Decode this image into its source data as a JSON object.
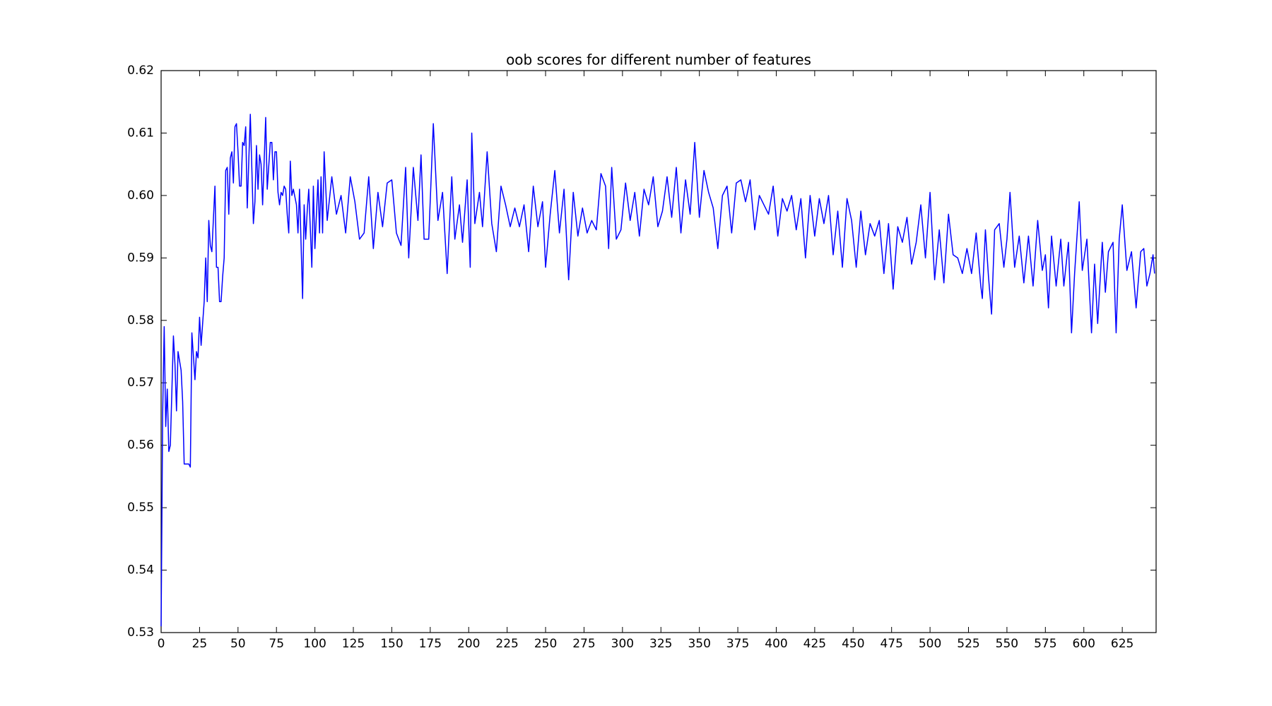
{
  "chart_data": {
    "type": "line",
    "title": "oob scores for different number of features",
    "color": "#0000ff",
    "x": [
      0,
      1,
      2,
      3,
      4,
      5,
      6,
      8,
      9,
      10,
      11,
      13,
      14,
      15,
      18,
      19,
      20,
      22,
      23,
      24,
      25,
      26,
      28,
      29,
      30,
      31,
      32,
      33,
      35,
      36,
      37,
      38,
      39,
      40,
      41,
      42,
      43,
      44,
      45,
      46,
      47,
      48,
      49,
      50,
      51,
      52,
      53,
      54,
      55,
      56,
      58,
      60,
      61,
      62,
      63,
      64,
      65,
      66,
      68,
      69,
      71,
      72,
      73,
      74,
      75,
      76,
      77,
      78,
      79,
      80,
      81,
      82,
      83,
      84,
      85,
      86,
      88,
      89,
      90,
      92,
      93,
      94,
      95,
      96,
      98,
      99,
      100,
      102,
      103,
      104,
      105,
      106,
      108,
      111,
      114,
      117,
      120,
      123,
      126,
      129,
      132,
      135,
      138,
      141,
      144,
      147,
      150,
      153,
      156,
      159,
      161,
      164,
      167,
      169,
      171,
      174,
      177,
      180,
      183,
      186,
      189,
      191,
      194,
      196,
      199,
      201,
      202,
      204,
      207,
      209,
      212,
      215,
      218,
      221,
      224,
      227,
      230,
      233,
      236,
      239,
      242,
      245,
      248,
      250,
      253,
      256,
      259,
      262,
      265,
      268,
      271,
      274,
      277,
      280,
      283,
      286,
      289,
      291,
      293,
      296,
      299,
      302,
      305,
      308,
      311,
      314,
      317,
      320,
      323,
      326,
      329,
      332,
      335,
      338,
      341,
      344,
      347,
      350,
      353,
      356,
      359,
      362,
      365,
      368,
      371,
      374,
      377,
      380,
      383,
      386,
      389,
      392,
      395,
      398,
      401,
      404,
      407,
      410,
      413,
      416,
      419,
      422,
      425,
      428,
      431,
      434,
      437,
      440,
      443,
      446,
      449,
      452,
      455,
      458,
      461,
      464,
      467,
      470,
      473,
      476,
      479,
      482,
      485,
      488,
      491,
      494,
      497,
      500,
      503,
      506,
      509,
      512,
      515,
      518,
      521,
      524,
      527,
      530,
      533,
      534,
      536,
      538,
      540,
      542,
      545,
      548,
      550,
      552,
      555,
      558,
      561,
      564,
      567,
      570,
      573,
      575,
      577,
      579,
      582,
      585,
      587,
      590,
      592,
      594,
      597,
      599,
      602,
      605,
      607,
      609,
      612,
      614,
      616,
      619,
      621,
      623,
      625,
      628,
      631,
      634,
      637,
      639,
      641,
      643,
      645,
      646
    ],
    "values": [
      0.531,
      0.565,
      0.579,
      0.563,
      0.569,
      0.559,
      0.56,
      0.5775,
      0.573,
      0.5655,
      0.575,
      0.572,
      0.567,
      0.557,
      0.557,
      0.5565,
      0.578,
      0.5705,
      0.575,
      0.574,
      0.5805,
      0.576,
      0.583,
      0.59,
      0.583,
      0.596,
      0.592,
      0.591,
      0.6015,
      0.5885,
      0.5885,
      0.583,
      0.583,
      0.587,
      0.59,
      0.604,
      0.6045,
      0.597,
      0.606,
      0.607,
      0.602,
      0.611,
      0.6115,
      0.607,
      0.6015,
      0.6015,
      0.6085,
      0.608,
      0.611,
      0.598,
      0.613,
      0.5955,
      0.599,
      0.608,
      0.601,
      0.6065,
      0.605,
      0.5985,
      0.6125,
      0.601,
      0.6085,
      0.6085,
      0.6025,
      0.607,
      0.607,
      0.6005,
      0.5985,
      0.6005,
      0.6,
      0.6015,
      0.601,
      0.597,
      0.594,
      0.6055,
      0.6,
      0.601,
      0.5985,
      0.594,
      0.601,
      0.5835,
      0.5985,
      0.593,
      0.5975,
      0.601,
      0.5885,
      0.6015,
      0.5915,
      0.6025,
      0.594,
      0.603,
      0.594,
      0.607,
      0.596,
      0.603,
      0.597,
      0.6,
      0.594,
      0.603,
      0.599,
      0.593,
      0.594,
      0.603,
      0.5915,
      0.6005,
      0.595,
      0.602,
      0.6025,
      0.594,
      0.592,
      0.6045,
      0.59,
      0.6045,
      0.596,
      0.6065,
      0.593,
      0.593,
      0.6115,
      0.596,
      0.6005,
      0.5875,
      0.603,
      0.593,
      0.5985,
      0.5925,
      0.6025,
      0.5885,
      0.61,
      0.5955,
      0.6005,
      0.595,
      0.607,
      0.5955,
      0.591,
      0.6015,
      0.5985,
      0.595,
      0.598,
      0.595,
      0.5985,
      0.591,
      0.6015,
      0.595,
      0.599,
      0.5885,
      0.597,
      0.604,
      0.594,
      0.601,
      0.5865,
      0.6005,
      0.5935,
      0.598,
      0.594,
      0.596,
      0.5945,
      0.6035,
      0.6015,
      0.5915,
      0.6045,
      0.593,
      0.5945,
      0.602,
      0.596,
      0.6005,
      0.5935,
      0.601,
      0.5985,
      0.603,
      0.595,
      0.5975,
      0.603,
      0.5965,
      0.6045,
      0.594,
      0.6025,
      0.597,
      0.6085,
      0.5965,
      0.604,
      0.6005,
      0.598,
      0.5915,
      0.6,
      0.6015,
      0.594,
      0.602,
      0.6025,
      0.599,
      0.6025,
      0.5945,
      0.6,
      0.5985,
      0.597,
      0.6015,
      0.5935,
      0.5995,
      0.5975,
      0.6,
      0.5945,
      0.5995,
      0.59,
      0.6,
      0.5935,
      0.5995,
      0.5955,
      0.6,
      0.5905,
      0.5975,
      0.5885,
      0.5995,
      0.596,
      0.5885,
      0.5975,
      0.5905,
      0.5955,
      0.5935,
      0.596,
      0.5875,
      0.5955,
      0.585,
      0.595,
      0.5925,
      0.5965,
      0.589,
      0.5925,
      0.5985,
      0.59,
      0.6005,
      0.5865,
      0.5945,
      0.586,
      0.597,
      0.5905,
      0.59,
      0.5875,
      0.5915,
      0.5875,
      0.594,
      0.5855,
      0.5835,
      0.5945,
      0.587,
      0.581,
      0.5945,
      0.5955,
      0.5885,
      0.593,
      0.6005,
      0.5885,
      0.5935,
      0.586,
      0.5935,
      0.5855,
      0.596,
      0.588,
      0.5905,
      0.582,
      0.5935,
      0.5855,
      0.593,
      0.5855,
      0.5925,
      0.578,
      0.5875,
      0.599,
      0.588,
      0.593,
      0.578,
      0.589,
      0.5795,
      0.5925,
      0.5845,
      0.591,
      0.5925,
      0.578,
      0.593,
      0.5985,
      0.588,
      0.591,
      0.582,
      0.591,
      0.5915,
      0.5855,
      0.5875,
      0.5905,
      0.5875
    ],
    "xlim": [
      0,
      647
    ],
    "xticks": [
      0,
      25,
      50,
      75,
      100,
      125,
      150,
      175,
      200,
      225,
      250,
      275,
      300,
      325,
      350,
      375,
      400,
      425,
      450,
      475,
      500,
      525,
      550,
      575,
      600,
      625
    ],
    "ylim": [
      0.53,
      0.62
    ],
    "yticks": [
      0.53,
      0.54,
      0.55,
      0.56,
      0.57,
      0.58,
      0.59,
      {
        "value": 0.6,
        "label": "0.60"
      },
      0.61,
      0.62
    ]
  }
}
